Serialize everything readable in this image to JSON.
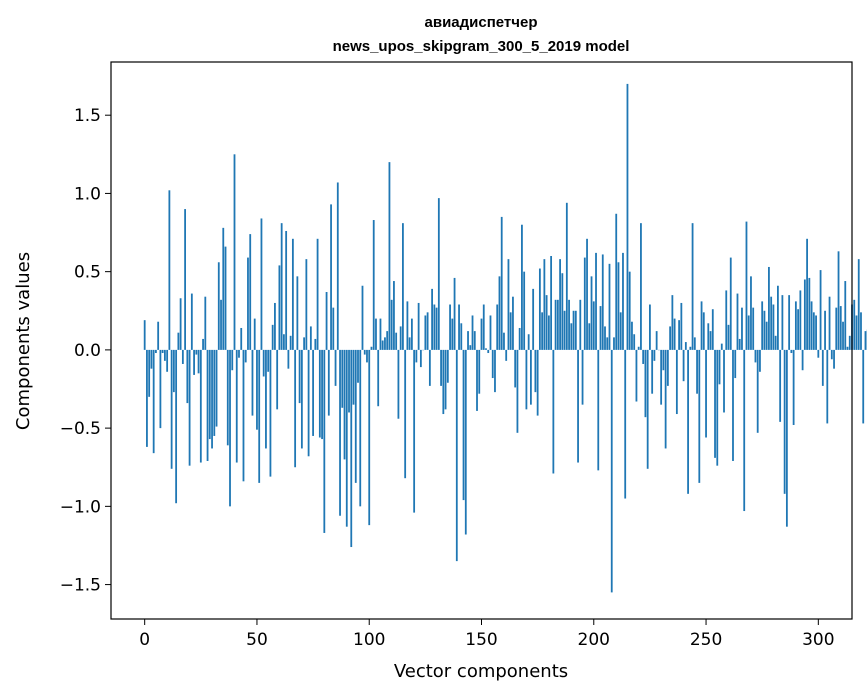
{
  "chart_data": {
    "type": "bar",
    "title_line1": "авиадиспетчер",
    "title_line2": "news_upos_skipgram_300_5_2019 model",
    "xlabel": "Vector components",
    "ylabel": "Components values",
    "xlim": [
      -15,
      315
    ],
    "ylim": [
      -1.72,
      1.84
    ],
    "x_ticks": [
      0,
      50,
      100,
      150,
      200,
      250,
      300
    ],
    "x_tick_labels": [
      "0",
      "50",
      "100",
      "150",
      "200",
      "250",
      "300"
    ],
    "y_ticks": [
      -1.5,
      -1.0,
      -0.5,
      0.0,
      0.5,
      1.0,
      1.5
    ],
    "y_tick_labels": [
      "−1.5",
      "−1.0",
      "−0.5",
      "0.0",
      "0.5",
      "1.0",
      "1.5"
    ],
    "bar_color": "#1f77b4",
    "values": [
      0.19,
      -0.62,
      -0.3,
      -0.12,
      -0.66,
      -0.02,
      0.18,
      -0.5,
      -0.02,
      -0.07,
      -0.14,
      1.02,
      -0.76,
      -0.27,
      -0.98,
      0.11,
      0.33,
      -0.09,
      0.9,
      -0.34,
      -0.74,
      0.36,
      -0.16,
      -0.03,
      -0.15,
      -0.72,
      0.07,
      0.34,
      -0.71,
      -0.57,
      -0.63,
      -0.55,
      -0.49,
      0.56,
      0.32,
      0.78,
      0.66,
      -0.61,
      -1.0,
      -0.13,
      1.25,
      -0.72,
      -0.05,
      0.14,
      -0.84,
      -0.08,
      0.59,
      0.74,
      -0.42,
      0.2,
      -0.51,
      -0.85,
      0.84,
      -0.17,
      -0.63,
      -0.14,
      -0.81,
      0.16,
      0.3,
      -0.38,
      0.54,
      0.81,
      0.1,
      0.76,
      -0.12,
      0.09,
      0.71,
      -0.75,
      0.47,
      -0.34,
      -0.63,
      0.08,
      0.58,
      -0.68,
      0.15,
      -0.55,
      0.07,
      0.71,
      -0.56,
      -0.57,
      -1.17,
      0.37,
      -0.42,
      0.93,
      0.27,
      -0.23,
      1.07,
      -1.06,
      -0.37,
      -0.7,
      -1.13,
      -0.4,
      -1.26,
      -0.35,
      -0.85,
      -0.21,
      -1.0,
      0.41,
      -0.03,
      -0.08,
      -1.12,
      0.02,
      0.83,
      0.2,
      -0.36,
      0.2,
      0.06,
      0.08,
      0.12,
      1.2,
      0.32,
      0.44,
      0.11,
      -0.44,
      0.15,
      0.81,
      -0.82,
      0.31,
      0.08,
      0.2,
      -1.04,
      -0.08,
      0.3,
      -0.11,
      0.0,
      0.22,
      0.24,
      -0.23,
      0.39,
      0.29,
      0.27,
      0.97,
      -0.23,
      -0.41,
      -0.38,
      -0.21,
      0.29,
      0.2,
      0.46,
      -1.35,
      0.29,
      0.17,
      -0.96,
      -1.18,
      0.12,
      0.03,
      0.22,
      0.12,
      -0.39,
      -0.28,
      0.2,
      0.29,
      0.01,
      -0.02,
      0.22,
      -0.18,
      -0.27,
      0.29,
      0.47,
      0.85,
      0.11,
      -0.07,
      0.58,
      0.24,
      0.34,
      -0.24,
      -0.53,
      0.14,
      0.8,
      0.5,
      -0.38,
      0.1,
      -0.35,
      0.39,
      -0.27,
      -0.42,
      0.52,
      0.24,
      0.58,
      0.35,
      0.22,
      0.6,
      -0.79,
      0.32,
      0.32,
      0.58,
      0.49,
      0.25,
      0.94,
      0.32,
      0.17,
      0.25,
      0.25,
      -0.72,
      0.32,
      -0.35,
      0.59,
      0.71,
      0.17,
      0.47,
      0.31,
      0.62,
      -0.77,
      0.28,
      0.61,
      0.15,
      0.08,
      0.55,
      -1.55,
      0.08,
      0.87,
      0.56,
      0.24,
      0.62,
      -0.95,
      1.7,
      0.5,
      0.18,
      0.1,
      -0.33,
      0.02,
      0.81,
      -0.09,
      -0.43,
      -0.76,
      0.29,
      -0.28,
      -0.07,
      0.12,
      0.0,
      -0.35,
      -0.13,
      -0.63,
      -0.23,
      0.15,
      0.35,
      0.2,
      -0.41,
      0.19,
      0.3,
      -0.2,
      0.05,
      -0.92,
      0.02,
      0.81,
      0.08,
      -0.28,
      -0.85,
      0.31,
      0.24,
      -0.56,
      0.17,
      0.12,
      0.26,
      -0.69,
      -0.74,
      -0.22,
      0.04,
      -0.4,
      0.38,
      0.16,
      0.59,
      -0.71,
      -0.18,
      0.36,
      0.07,
      0.27,
      -1.03,
      0.82,
      0.22,
      0.47,
      0.27,
      -0.08,
      -0.53,
      -0.14,
      0.31,
      0.25,
      0.18,
      0.53,
      0.34,
      0.29,
      0.09,
      0.41,
      -0.46,
      0.35,
      -0.92,
      -1.13,
      0.35,
      -0.02,
      -0.48,
      0.31,
      0.26,
      0.38,
      -0.13,
      0.45,
      0.71,
      0.46,
      0.31,
      0.24,
      0.22,
      -0.05,
      0.51,
      -0.23,
      0.25,
      -0.47,
      0.34,
      -0.06,
      -0.12,
      0.27,
      0.63,
      0.28,
      0.18,
      0.44,
      0.02,
      0.09,
      0.29,
      0.32,
      0.22,
      0.58,
      0.24,
      -0.47,
      0.12,
      0.13,
      0.08
    ]
  }
}
